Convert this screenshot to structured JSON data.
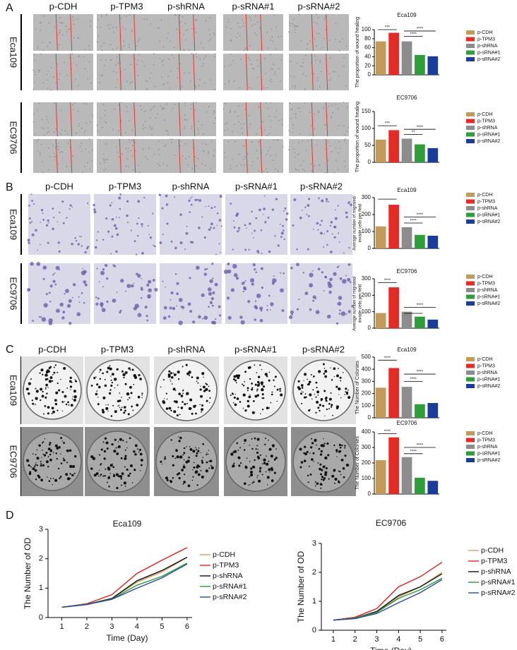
{
  "panels": [
    {
      "label": "A",
      "columns": [
        "p-CDH",
        "p-TPM3",
        "p-shRNA",
        "p-sRNA#1",
        "p-sRNA#2"
      ],
      "rows": [
        "Eca109",
        "EC9706"
      ]
    },
    {
      "label": "B",
      "columns": [
        "p-CDH",
        "p-TPM3",
        "p-shRNA",
        "p-sRNA#1",
        "p-sRNA#2"
      ],
      "rows": [
        "Eca109",
        "EC9706"
      ]
    },
    {
      "label": "C",
      "columns": [
        "p-CDH",
        "p-TPM3",
        "p-shRNA",
        "p-sRNA#1",
        "p-sRNA#2"
      ],
      "rows": [
        "Eca109",
        "EC9706"
      ]
    },
    {
      "label": "D"
    }
  ],
  "chart_data": [
    {
      "type": "bar",
      "title": "Eca109",
      "ylabel": [
        "The proportion of wound healing"
      ],
      "categories": [
        "p-CDH",
        "p-TPM3",
        "p-shRNA",
        "p-sRNA#1",
        "p-sRNA#2"
      ],
      "values": [
        74,
        93,
        74,
        44,
        41
      ],
      "colors": [
        "#c49a5a",
        "#e52b25",
        "#8c8c8c",
        "#2e9e3a",
        "#1a3d9c"
      ],
      "ylim": [
        0,
        100
      ],
      "yticks": [
        0,
        20,
        40,
        60,
        80,
        100
      ],
      "annotations": [
        "***",
        "****",
        "****"
      ]
    },
    {
      "type": "bar",
      "title": "EC9706",
      "ylabel": [
        "The proportion of wound healing"
      ],
      "categories": [
        "p-CDH",
        "p-TPM3",
        "p-shRNA",
        "p-sRNA#1",
        "p-sRNA#2"
      ],
      "values": [
        67,
        95,
        70,
        53,
        42
      ],
      "colors": [
        "#c49a5a",
        "#e52b25",
        "#8c8c8c",
        "#2e9e3a",
        "#1a3d9c"
      ],
      "ylim": [
        0,
        150
      ],
      "yticks": [
        0,
        50,
        100,
        150
      ],
      "annotations": [
        "***",
        "**",
        "****"
      ]
    },
    {
      "type": "bar",
      "title": "Eca109",
      "ylabel": [
        "Average number of migrated/",
        "invade cells per field"
      ],
      "categories": [
        "p-CDH",
        "p-TPM3",
        "p-shRNA",
        "p-sRNA#1",
        "p-sRNA#2"
      ],
      "values": [
        130,
        258,
        125,
        80,
        75
      ],
      "colors": [
        "#c49a5a",
        "#e52b25",
        "#8c8c8c",
        "#2e9e3a",
        "#1a3d9c"
      ],
      "ylim": [
        0,
        300
      ],
      "yticks": [
        0,
        100,
        200,
        300
      ],
      "annotations": [
        "****",
        "****"
      ]
    },
    {
      "type": "bar",
      "title": "EC9706",
      "ylabel": [
        "Average number of migrated/",
        "invade cells per field"
      ],
      "categories": [
        "p-CDH",
        "p-TPM3",
        "p-shRNA",
        "p-sRNA#1",
        "p-sRNA#2"
      ],
      "values": [
        92,
        248,
        100,
        70,
        52
      ],
      "colors": [
        "#c49a5a",
        "#e52b25",
        "#8c8c8c",
        "#2e9e3a",
        "#1a3d9c"
      ],
      "ylim": [
        0,
        300
      ],
      "yticks": [
        0,
        100,
        200,
        300
      ],
      "annotations": [
        "****",
        "****"
      ]
    },
    {
      "type": "bar",
      "title": "Eca109",
      "ylabel": [
        "The Number of Colonies"
      ],
      "categories": [
        "p-CDH",
        "p-TPM3",
        "p-shRNA",
        "p-sRNA#1",
        "p-sRNA#2"
      ],
      "values": [
        248,
        410,
        255,
        112,
        122
      ],
      "colors": [
        "#c49a5a",
        "#e52b25",
        "#8c8c8c",
        "#2e9e3a",
        "#1a3d9c"
      ],
      "ylim": [
        0,
        500
      ],
      "yticks": [
        0,
        100,
        200,
        300,
        400,
        500
      ],
      "annotations": [
        "****",
        "****",
        "****"
      ]
    },
    {
      "type": "bar",
      "title": "EC9706",
      "ylabel": [
        "The Number of Colonies"
      ],
      "categories": [
        "p-CDH",
        "p-TPM3",
        "p-shRNA",
        "p-sRNA#1",
        "p-sRNA#2"
      ],
      "values": [
        218,
        365,
        238,
        105,
        85
      ],
      "colors": [
        "#c49a5a",
        "#e52b25",
        "#8c8c8c",
        "#2e9e3a",
        "#1a3d9c"
      ],
      "ylim": [
        0,
        400
      ],
      "yticks": [
        0,
        100,
        200,
        300,
        400
      ],
      "annotations": [
        "****",
        "****",
        "****"
      ]
    },
    {
      "type": "line",
      "title": "Eca109",
      "xlabel": "Time (Day)",
      "ylabel": [
        "The Number of OD"
      ],
      "x": [
        1,
        2,
        3,
        4,
        5,
        6
      ],
      "xlim": [
        0.45,
        6.2
      ],
      "xticks": [
        1,
        2,
        3,
        4,
        5,
        6
      ],
      "ylim": [
        0,
        3
      ],
      "yticks": [
        0,
        1,
        2,
        3
      ],
      "series": [
        {
          "name": "p-CDH",
          "color": "#d4a060",
          "values": [
            0.35,
            0.45,
            0.65,
            1.2,
            1.55,
            2.05
          ]
        },
        {
          "name": "p-TPM3",
          "color": "#e02020",
          "values": [
            0.35,
            0.47,
            0.78,
            1.5,
            1.95,
            2.38
          ]
        },
        {
          "name": "p-shRNA",
          "color": "#111111",
          "values": [
            0.35,
            0.45,
            0.65,
            1.25,
            1.6,
            2.05
          ]
        },
        {
          "name": "p-sRNA#1",
          "color": "#2a9a3a",
          "values": [
            0.35,
            0.45,
            0.63,
            1.1,
            1.4,
            1.85
          ]
        },
        {
          "name": "p-sRNA#2",
          "color": "#2a4aa0",
          "values": [
            0.35,
            0.44,
            0.62,
            1.0,
            1.35,
            1.82
          ]
        }
      ]
    },
    {
      "type": "line",
      "title": "EC9706",
      "xlabel": "Time (Day)",
      "ylabel": [
        "The Number of OD"
      ],
      "x": [
        1,
        2,
        3,
        4,
        5,
        6
      ],
      "xlim": [
        0.45,
        6.2
      ],
      "xticks": [
        1,
        2,
        3,
        4,
        5,
        6
      ],
      "ylim": [
        0,
        3
      ],
      "yticks": [
        0,
        1,
        2,
        3
      ],
      "series": [
        {
          "name": "p-CDH",
          "color": "#d4a060",
          "values": [
            0.35,
            0.42,
            0.62,
            1.15,
            1.5,
            2.0
          ]
        },
        {
          "name": "p-TPM3",
          "color": "#e02020",
          "values": [
            0.35,
            0.45,
            0.75,
            1.5,
            1.85,
            2.35
          ]
        },
        {
          "name": "p-shRNA",
          "color": "#111111",
          "values": [
            0.35,
            0.42,
            0.65,
            1.2,
            1.5,
            1.95
          ]
        },
        {
          "name": "p-sRNA#1",
          "color": "#2a9a3a",
          "values": [
            0.35,
            0.42,
            0.62,
            1.1,
            1.4,
            1.8
          ]
        },
        {
          "name": "p-sRNA#2",
          "color": "#2a4aa0",
          "values": [
            0.35,
            0.4,
            0.58,
            0.95,
            1.3,
            1.75
          ]
        }
      ]
    }
  ]
}
